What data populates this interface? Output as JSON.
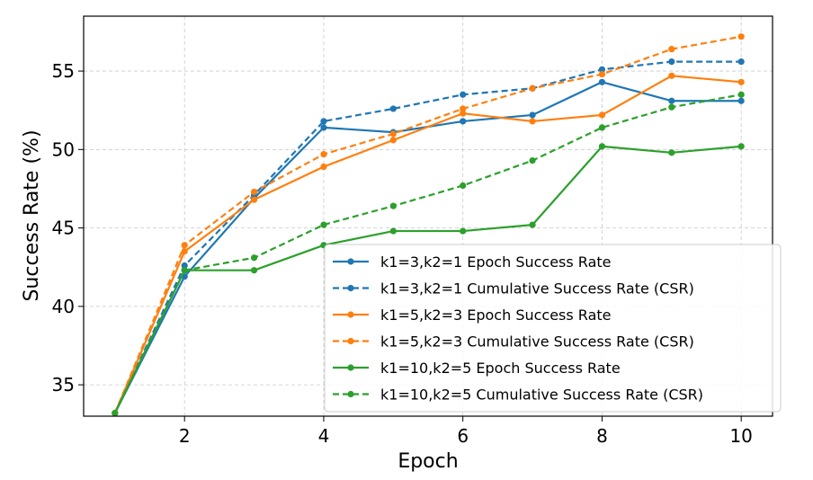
{
  "chart_data": {
    "type": "line",
    "title": "",
    "xlabel": "Epoch",
    "ylabel": "Success Rate (%)",
    "xlim": [
      0.55,
      10.45
    ],
    "ylim": [
      33.0,
      58.5
    ],
    "xticks": [
      2,
      4,
      6,
      8,
      10
    ],
    "yticks": [
      35,
      40,
      45,
      50,
      55
    ],
    "grid": true,
    "legend_position": "lower-right",
    "x": [
      1,
      2,
      3,
      4,
      5,
      6,
      7,
      8,
      9,
      10
    ],
    "series": [
      {
        "name": "k1=3,k2=1 Epoch Success Rate",
        "color": "#1f77b4",
        "dashed": false,
        "values": [
          33.2,
          41.9,
          46.9,
          51.4,
          51.1,
          51.8,
          52.2,
          54.3,
          53.1,
          53.1
        ]
      },
      {
        "name": "k1=3,k2=1 Cumulative Success Rate (CSR)",
        "color": "#1f77b4",
        "dashed": true,
        "values": [
          33.2,
          42.6,
          47.1,
          51.8,
          52.6,
          53.5,
          53.9,
          55.1,
          55.6,
          55.6
        ]
      },
      {
        "name": "k1=5,k2=3 Epoch Success Rate",
        "color": "#ff7f0e",
        "dashed": false,
        "values": [
          33.2,
          43.5,
          46.8,
          48.9,
          50.6,
          52.3,
          51.8,
          52.2,
          54.7,
          54.3
        ]
      },
      {
        "name": "k1=5,k2=3 Cumulative Success Rate (CSR)",
        "color": "#ff7f0e",
        "dashed": true,
        "values": [
          33.2,
          43.9,
          47.3,
          49.7,
          51.0,
          52.6,
          53.9,
          54.8,
          56.4,
          57.2
        ]
      },
      {
        "name": "k1=10,k2=5 Epoch Success Rate",
        "color": "#2ca02c",
        "dashed": false,
        "values": [
          33.2,
          42.3,
          42.3,
          43.9,
          44.8,
          44.8,
          45.2,
          50.2,
          49.8,
          50.2
        ]
      },
      {
        "name": "k1=10,k2=5 Cumulative Success Rate (CSR)",
        "color": "#2ca02c",
        "dashed": true,
        "values": [
          33.2,
          42.3,
          43.1,
          45.2,
          46.4,
          47.7,
          49.3,
          51.4,
          52.7,
          53.5
        ]
      }
    ]
  }
}
